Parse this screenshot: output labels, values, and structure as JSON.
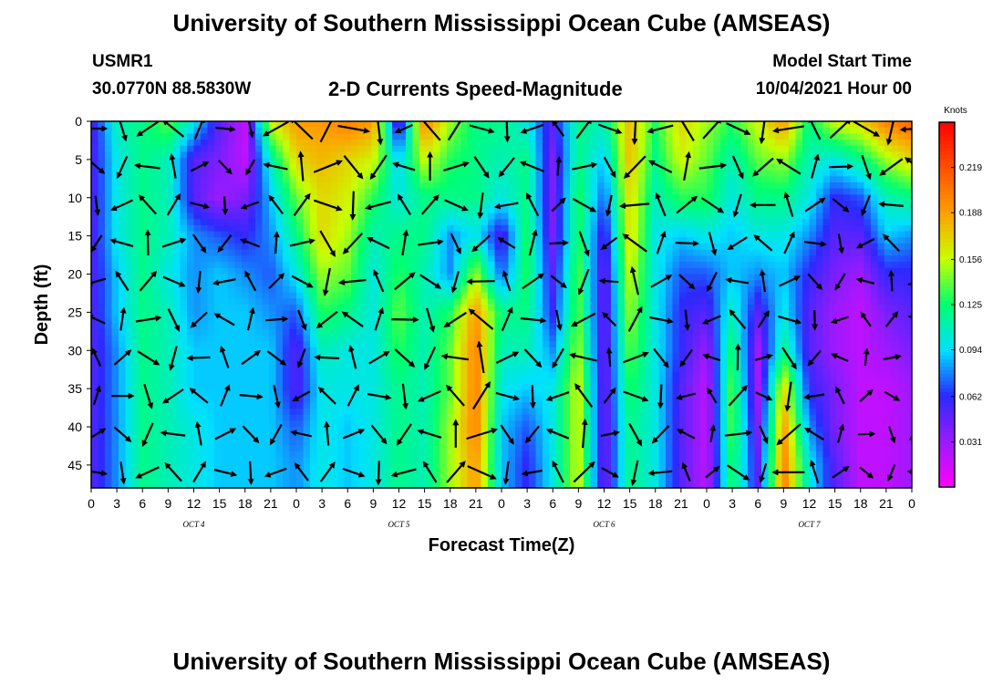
{
  "header": {
    "title": "University of Southern Mississippi Ocean Cube (AMSEAS)",
    "station": "USMR1",
    "coords": "30.0770N  88.5830W",
    "plot_title": "2-D Currents Speed-Magnitude",
    "model_start_label": "Model Start Time",
    "model_start_value": "10/04/2021 Hour 00"
  },
  "footer": {
    "title": "University of Southern Mississippi Ocean Cube (AMSEAS)"
  },
  "chart_data": {
    "type": "heatmap",
    "title": "2-D Currents Speed-Magnitude",
    "xlabel": "Forecast Time(Z)",
    "ylabel": "Depth (ft)",
    "colorbar_label": "Knots",
    "colorbar_ticks": [
      "0.219",
      "0.188",
      "0.156",
      "0.125",
      "0.094",
      "0.062",
      "0.031"
    ],
    "colorbar_range": [
      0.0,
      0.25
    ],
    "colors": [
      "#ff00ff",
      "#9a1aff",
      "#2a2aff",
      "#00e0ff",
      "#00ff70",
      "#c8ff00",
      "#ffa000",
      "#ff5000",
      "#ff0000"
    ],
    "x_tick_labels": [
      "0",
      "3",
      "6",
      "9",
      "12",
      "15",
      "18",
      "21",
      "0",
      "3",
      "6",
      "9",
      "12",
      "15",
      "18",
      "21",
      "0",
      "3",
      "6",
      "9",
      "12",
      "15",
      "18",
      "21",
      "0",
      "3",
      "6",
      "9",
      "12",
      "15",
      "18",
      "21",
      "0"
    ],
    "x_range_hours": [
      0,
      96
    ],
    "day_labels": [
      {
        "label": "OCT 4",
        "hour": 12
      },
      {
        "label": "OCT 5",
        "hour": 36
      },
      {
        "label": "OCT 6",
        "hour": 60
      },
      {
        "label": "OCT 7",
        "hour": 84
      }
    ],
    "y_tick_labels": [
      "0",
      "5",
      "10",
      "15",
      "20",
      "25",
      "30",
      "35",
      "40",
      "45"
    ],
    "y_range_ft": [
      0,
      48
    ],
    "speed_profiles_knots": [
      [
        0.05,
        0.05,
        0.05,
        0.05,
        0.05,
        0.05,
        0.05,
        0.05,
        0.05,
        0.05
      ],
      [
        0.11,
        0.1,
        0.1,
        0.1,
        0.09,
        0.09,
        0.08,
        0.08,
        0.08,
        0.08
      ],
      [
        0.12,
        0.12,
        0.12,
        0.12,
        0.12,
        0.12,
        0.12,
        0.12,
        0.12,
        0.12
      ],
      [
        0.14,
        0.11,
        0.11,
        0.11,
        0.1,
        0.11,
        0.11,
        0.11,
        0.11,
        0.11
      ],
      [
        0.1,
        0.05,
        0.05,
        0.08,
        0.08,
        0.08,
        0.09,
        0.09,
        0.1,
        0.1
      ],
      [
        0.05,
        0.04,
        0.03,
        0.07,
        0.09,
        0.09,
        0.09,
        0.09,
        0.09,
        0.09
      ],
      [
        0.02,
        0.02,
        0.04,
        0.06,
        0.08,
        0.09,
        0.09,
        0.09,
        0.09,
        0.09
      ],
      [
        0.16,
        0.11,
        0.09,
        0.08,
        0.07,
        0.08,
        0.09,
        0.09,
        0.09,
        0.09
      ],
      [
        0.19,
        0.17,
        0.14,
        0.12,
        0.1,
        0.07,
        0.05,
        0.05,
        0.07,
        0.08
      ],
      [
        0.19,
        0.18,
        0.17,
        0.17,
        0.15,
        0.13,
        0.11,
        0.1,
        0.1,
        0.1
      ],
      [
        0.2,
        0.17,
        0.16,
        0.15,
        0.14,
        0.12,
        0.1,
        0.1,
        0.09,
        0.09
      ],
      [
        0.19,
        0.16,
        0.13,
        0.11,
        0.1,
        0.1,
        0.1,
        0.1,
        0.1,
        0.1
      ],
      [
        0.04,
        0.09,
        0.1,
        0.12,
        0.13,
        0.14,
        0.13,
        0.12,
        0.12,
        0.12
      ],
      [
        0.2,
        0.16,
        0.12,
        0.12,
        0.11,
        0.11,
        0.11,
        0.11,
        0.11,
        0.11
      ],
      [
        0.15,
        0.13,
        0.12,
        0.08,
        0.08,
        0.13,
        0.14,
        0.14,
        0.15,
        0.15
      ],
      [
        0.12,
        0.12,
        0.12,
        0.1,
        0.15,
        0.19,
        0.2,
        0.2,
        0.2,
        0.19
      ],
      [
        0.12,
        0.11,
        0.1,
        0.05,
        0.07,
        0.12,
        0.11,
        0.1,
        0.09,
        0.09
      ],
      [
        0.1,
        0.12,
        0.12,
        0.13,
        0.13,
        0.12,
        0.11,
        0.09,
        0.07,
        0.06
      ],
      [
        0.05,
        0.04,
        0.04,
        0.04,
        0.05,
        0.06,
        0.08,
        0.1,
        0.1,
        0.1
      ],
      [
        0.12,
        0.12,
        0.13,
        0.13,
        0.14,
        0.14,
        0.15,
        0.16,
        0.16,
        0.16
      ],
      [
        0.11,
        0.09,
        0.07,
        0.05,
        0.04,
        0.04,
        0.04,
        0.04,
        0.04,
        0.04
      ],
      [
        0.18,
        0.18,
        0.17,
        0.17,
        0.16,
        0.15,
        0.14,
        0.13,
        0.12,
        0.12
      ],
      [
        0.13,
        0.12,
        0.11,
        0.1,
        0.1,
        0.1,
        0.1,
        0.1,
        0.1,
        0.1
      ],
      [
        0.17,
        0.16,
        0.13,
        0.09,
        0.07,
        0.06,
        0.06,
        0.05,
        0.05,
        0.05
      ],
      [
        0.15,
        0.14,
        0.13,
        0.1,
        0.07,
        0.05,
        0.03,
        0.02,
        0.02,
        0.02
      ],
      [
        0.13,
        0.11,
        0.1,
        0.09,
        0.09,
        0.11,
        0.13,
        0.14,
        0.14,
        0.13
      ],
      [
        0.16,
        0.14,
        0.12,
        0.1,
        0.08,
        0.05,
        0.03,
        0.03,
        0.04,
        0.05
      ],
      [
        0.19,
        0.15,
        0.12,
        0.1,
        0.09,
        0.1,
        0.12,
        0.17,
        0.19,
        0.2
      ],
      [
        0.12,
        0.11,
        0.1,
        0.08,
        0.06,
        0.05,
        0.05,
        0.06,
        0.08,
        0.1
      ],
      [
        0.16,
        0.1,
        0.06,
        0.05,
        0.04,
        0.03,
        0.03,
        0.04,
        0.04,
        0.05
      ],
      [
        0.17,
        0.12,
        0.07,
        0.05,
        0.03,
        0.02,
        0.02,
        0.02,
        0.02,
        0.02
      ],
      [
        0.2,
        0.15,
        0.11,
        0.09,
        0.06,
        0.04,
        0.03,
        0.02,
        0.02,
        0.02
      ],
      [
        0.21,
        0.17,
        0.12,
        0.08,
        0.06,
        0.05,
        0.04,
        0.03,
        0.03,
        0.03
      ]
    ]
  }
}
